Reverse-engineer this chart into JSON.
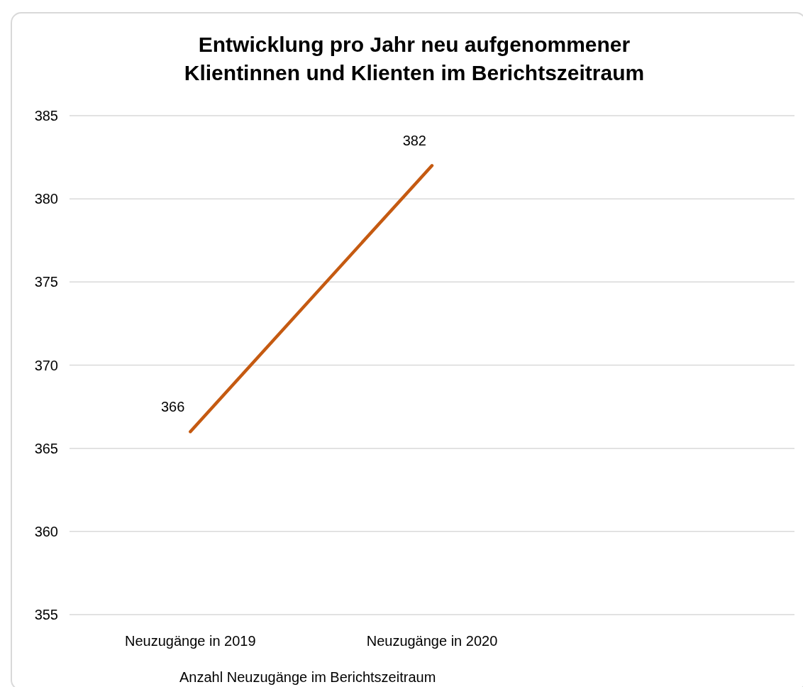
{
  "chart_data": {
    "type": "line",
    "title": "Entwicklung pro Jahr neu aufgenommener\nKlientinnen und Klienten im Berichtszeitraum",
    "xlabel": "Anzahl Neuzugänge im Berichtszeitraum",
    "categories": [
      "Neuzugänge in 2019",
      "Neuzugänge in 2020",
      null
    ],
    "series": [
      {
        "color": "#c55a11",
        "values": [
          366,
          382,
          null
        ]
      }
    ],
    "ylim": [
      355,
      385
    ],
    "yticks": [
      355,
      360,
      365,
      370,
      375,
      380,
      385
    ],
    "grid": "y",
    "data_labels": true,
    "marker": "none",
    "line_style": "solid"
  }
}
